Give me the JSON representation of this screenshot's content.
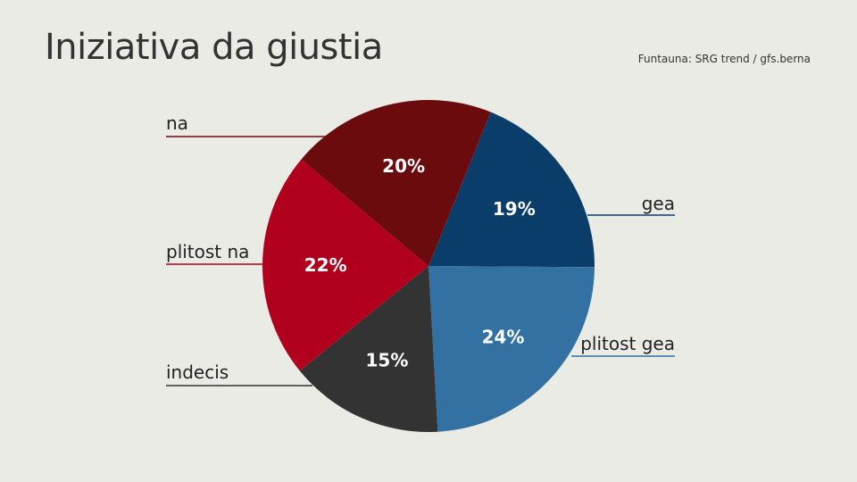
{
  "header": {
    "title": "Iniziativa da giustia",
    "source": "Funtauna: SRG trend / gfs.berna"
  },
  "chart_data": {
    "type": "pie",
    "title": "Iniziativa da giustia",
    "start": "top-right, clockwise",
    "slices": [
      {
        "category": "gea",
        "value": 19,
        "label": "19%",
        "color": "#0b3d6b"
      },
      {
        "category": "plitost gea",
        "value": 24,
        "label": "24%",
        "color": "#3271a1"
      },
      {
        "category": "indecis",
        "value": 15,
        "label": "15%",
        "color": "#333333"
      },
      {
        "category": "plitost na",
        "value": 22,
        "label": "22%",
        "color": "#b0001e"
      },
      {
        "category": "na",
        "value": 20,
        "label": "20%",
        "color": "#6b0b0e"
      }
    ]
  }
}
